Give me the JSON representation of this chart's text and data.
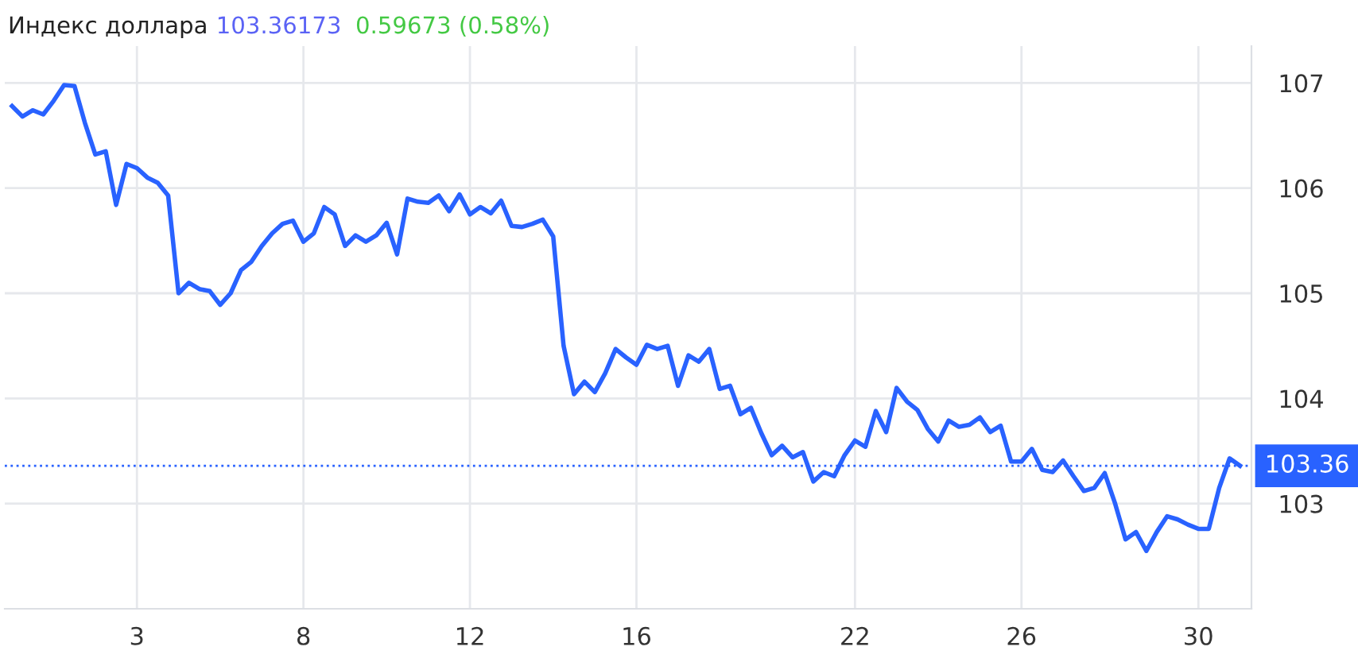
{
  "chart_data": {
    "type": "line",
    "title": "Индекс доллара",
    "annotations": [
      "103.36173",
      "0.59673 (0.58%)"
    ],
    "categories": [
      null,
      null,
      null,
      null,
      null,
      null,
      null,
      null,
      null,
      null,
      null,
      null,
      "3",
      null,
      null,
      null,
      null,
      null,
      null,
      null,
      null,
      null,
      null,
      null,
      null,
      null,
      null,
      null,
      "8",
      null,
      null,
      null,
      null,
      null,
      null,
      null,
      null,
      null,
      null,
      null,
      null,
      null,
      null,
      null,
      "12",
      null,
      null,
      null,
      null,
      null,
      null,
      null,
      null,
      null,
      null,
      null,
      null,
      null,
      null,
      null,
      "16",
      null,
      null,
      null,
      null,
      null,
      null,
      null,
      null,
      null,
      null,
      null,
      null,
      null,
      null,
      null,
      null,
      null,
      null,
      null,
      null,
      "22",
      null,
      null,
      null,
      null,
      null,
      null,
      null,
      null,
      null,
      null,
      null,
      null,
      null,
      null,
      null,
      "26",
      null,
      null,
      null,
      null,
      null,
      null,
      null,
      null,
      null,
      null,
      null,
      null,
      null,
      null,
      null,
      null,
      "30",
      null,
      null,
      null,
      null
    ],
    "series": [
      {
        "color": "#2962ff",
        "values": [
          106.78,
          106.68,
          106.74,
          106.7,
          106.83,
          106.98,
          106.97,
          106.62,
          106.32,
          106.35,
          105.84,
          106.23,
          106.19,
          106.1,
          106.05,
          105.93,
          105.0,
          105.1,
          105.04,
          105.02,
          104.89,
          105.0,
          105.22,
          105.3,
          105.45,
          105.57,
          105.66,
          105.69,
          105.49,
          105.57,
          105.82,
          105.75,
          105.45,
          105.55,
          105.49,
          105.55,
          105.67,
          105.37,
          105.9,
          105.87,
          105.86,
          105.93,
          105.78,
          105.94,
          105.75,
          105.82,
          105.76,
          105.88,
          105.64,
          105.63,
          105.66,
          105.7,
          105.54,
          104.5,
          104.04,
          104.16,
          104.06,
          104.24,
          104.47,
          104.39,
          104.32,
          104.51,
          104.47,
          104.5,
          104.12,
          104.41,
          104.35,
          104.47,
          104.09,
          104.12,
          103.85,
          103.91,
          103.67,
          103.46,
          103.55,
          103.44,
          103.49,
          103.21,
          103.3,
          103.26,
          103.46,
          103.6,
          103.54,
          103.88,
          103.68,
          104.1,
          103.97,
          103.89,
          103.71,
          103.59,
          103.79,
          103.73,
          103.75,
          103.82,
          103.68,
          103.74,
          103.4,
          103.4,
          103.52,
          103.32,
          103.3,
          103.41,
          103.26,
          103.12,
          103.15,
          103.29,
          103.0,
          102.66,
          102.73,
          102.55,
          102.73,
          102.88,
          102.85,
          102.8,
          102.76,
          102.76,
          103.15,
          103.43,
          103.36
        ]
      }
    ],
    "ylim": [
      102.0,
      107.35
    ],
    "yticks": [
      103,
      104,
      105,
      106,
      107
    ],
    "ref_lines": [
      {
        "axis": "y",
        "value": 103.36,
        "label": "103.36",
        "color": "#2962ff",
        "line_style": "dotted"
      }
    ],
    "grid": true,
    "marker": "none",
    "line_style": "solid"
  }
}
